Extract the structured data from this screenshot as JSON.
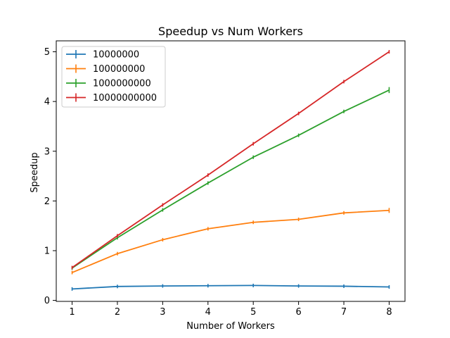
{
  "chart_data": {
    "type": "line",
    "title": "Speedup vs Num Workers",
    "xlabel": "Number of Workers",
    "ylabel": "Speedup",
    "x": [
      1,
      2,
      3,
      4,
      5,
      6,
      7,
      8
    ],
    "xlim": [
      0.65,
      8.35
    ],
    "ylim": [
      -0.02,
      5.22
    ],
    "xticks": [
      1,
      2,
      3,
      4,
      5,
      6,
      7,
      8
    ],
    "yticks": [
      0,
      1,
      2,
      3,
      4,
      5
    ],
    "grid": false,
    "legend_position": "top-left",
    "error_bars": true,
    "series": [
      {
        "name": "10000000",
        "color": "#1f77b4",
        "values": [
          0.23,
          0.28,
          0.29,
          0.295,
          0.3,
          0.29,
          0.285,
          0.27
        ],
        "errors": [
          0.005,
          0.005,
          0.005,
          0.005,
          0.005,
          0.005,
          0.005,
          0.005
        ]
      },
      {
        "name": "100000000",
        "color": "#ff7f0e",
        "values": [
          0.56,
          0.94,
          1.22,
          1.44,
          1.57,
          1.63,
          1.76,
          1.81
        ],
        "errors": [
          0.01,
          0.01,
          0.015,
          0.02,
          0.03,
          0.02,
          0.02,
          0.05
        ]
      },
      {
        "name": "1000000000",
        "color": "#2ca02c",
        "values": [
          0.65,
          1.26,
          1.82,
          2.36,
          2.88,
          3.32,
          3.8,
          4.23
        ],
        "errors": [
          0.01,
          0.01,
          0.01,
          0.01,
          0.02,
          0.02,
          0.02,
          0.06
        ]
      },
      {
        "name": "10000000000",
        "color": "#d62728",
        "values": [
          0.66,
          1.3,
          1.92,
          2.52,
          3.15,
          3.76,
          4.4,
          5.0
        ],
        "errors": [
          0.005,
          0.01,
          0.005,
          0.005,
          0.005,
          0.005,
          0.02,
          0.01
        ]
      }
    ]
  }
}
